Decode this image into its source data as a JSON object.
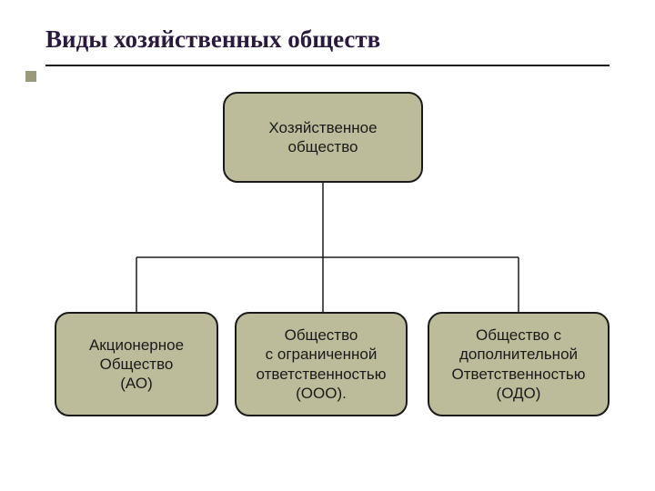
{
  "title": "Виды хозяйственных обществ",
  "diagram": {
    "type": "tree",
    "background_color": "#ffffff",
    "node_fill": "#bcbc9a",
    "node_border": "#1a1a1a",
    "node_border_width": 2,
    "node_border_radius": 16,
    "node_fontsize": 17,
    "title_color": "#2a1a3d",
    "title_fontsize": 27,
    "connector_color": "#1a1a1a",
    "connector_width": 1.5,
    "bullet_color": "#9a9a7a",
    "root": {
      "label": "Хозяйственное\nобщество"
    },
    "children": [
      {
        "label": "Акционерное\nОбщество\n(АО)"
      },
      {
        "label": "Общество\nс ограниченной\nответственностью\n(ООО)."
      },
      {
        "label": "Общество с\nдополнительной\nОтветственностью\n(ОДО)"
      }
    ]
  }
}
